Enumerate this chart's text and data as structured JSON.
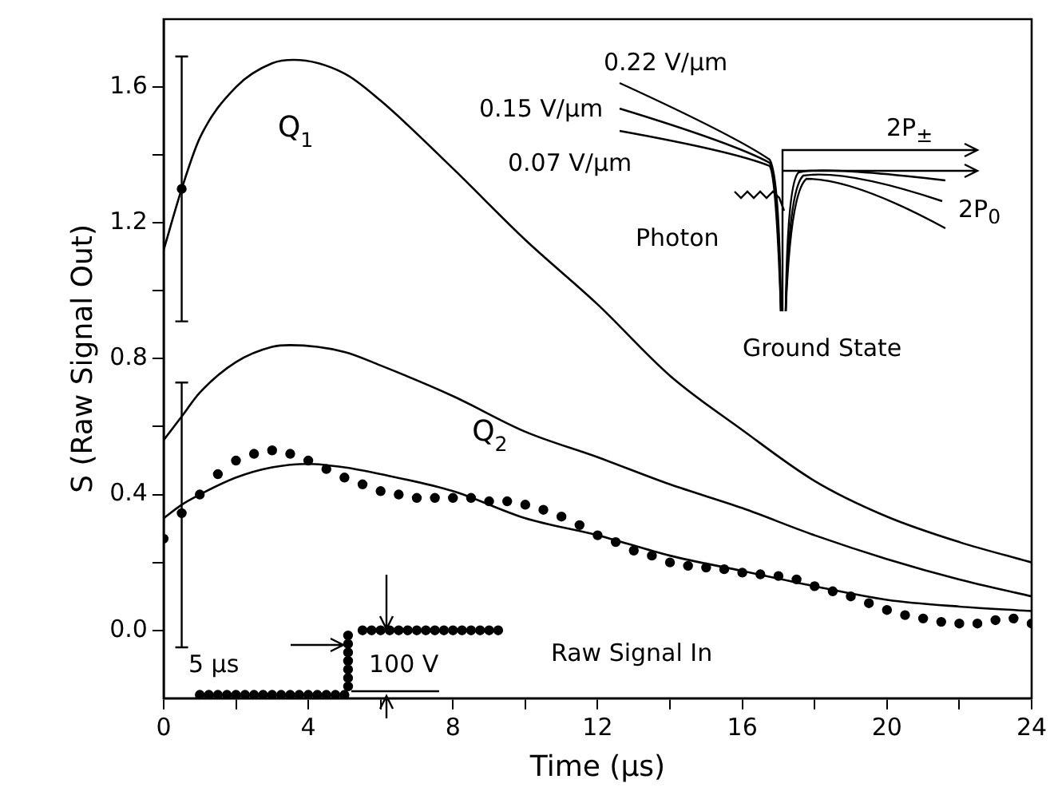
{
  "chart_data": {
    "type": "line",
    "xlabel": "Time (µs)",
    "ylabel": "S (Raw Signal Out)",
    "xlim": [
      0,
      24
    ],
    "ylim": [
      -0.2,
      1.8
    ],
    "xticks": [
      0,
      {
        "value": 2,
        "label": null
      },
      4,
      {
        "value": 6,
        "label": null
      },
      8,
      {
        "value": 10,
        "label": null
      },
      12,
      {
        "value": 14,
        "label": null
      },
      16,
      {
        "value": 18,
        "label": null
      },
      20,
      {
        "value": 22,
        "label": null
      },
      24
    ],
    "yticks": [
      {
        "value": 0,
        "label": "0.0"
      },
      {
        "value": 0.2,
        "label": null
      },
      {
        "value": 0.4,
        "label": "0.4"
      },
      {
        "value": 0.6,
        "label": null
      },
      {
        "value": 0.8,
        "label": "0.8"
      },
      {
        "value": 1.0,
        "label": null
      },
      {
        "value": 1.2,
        "label": "1.2"
      },
      {
        "value": 1.4,
        "label": null
      },
      {
        "value": 1.6,
        "label": "1.6"
      }
    ],
    "grid": false,
    "legend": false,
    "marker": "none",
    "line_style": "solid",
    "annotations": [
      "0.22 V/µm",
      "0.15 V/µm",
      "0.07 V/µm",
      "2P$_{±}$",
      "2P$_{0}$",
      "Photon",
      "Ground State",
      "5 µs",
      "100 V",
      "Raw Signal In"
    ],
    "series": [
      {
        "name": "Q$_{1}$",
        "color": "#000000",
        "x": [
          0,
          0.5,
          1,
          2,
          3,
          3.6,
          5,
          6,
          8,
          10,
          12,
          14,
          16,
          18,
          20,
          22,
          24
        ],
        "values": [
          1.12,
          1.3,
          1.45,
          1.6,
          1.67,
          1.68,
          1.64,
          1.56,
          1.36,
          1.15,
          0.96,
          0.75,
          0.59,
          0.44,
          0.335,
          0.26,
          0.2
        ]
      },
      {
        "name": "Q$_{2}$",
        "color": "#000000",
        "x": [
          0,
          0.5,
          1,
          2,
          3,
          3.5,
          5,
          6,
          8,
          10,
          12,
          14,
          16,
          18,
          20,
          22,
          24
        ],
        "values": [
          0.56,
          0.63,
          0.7,
          0.79,
          0.835,
          0.84,
          0.82,
          0.78,
          0.69,
          0.585,
          0.51,
          0.43,
          0.36,
          0.28,
          0.21,
          0.15,
          0.1
        ]
      },
      {
        "color": "#000000",
        "x": [
          0,
          0.5,
          1,
          2,
          3,
          4,
          5,
          6,
          8,
          10,
          12,
          14,
          16,
          18,
          20,
          22,
          24
        ],
        "values": [
          0.33,
          0.37,
          0.4,
          0.45,
          0.48,
          0.49,
          0.48,
          0.46,
          0.41,
          0.33,
          0.28,
          0.22,
          0.175,
          0.13,
          0.09,
          0.07,
          0.057
        ]
      },
      {
        "type": "scatter",
        "marker": "circle",
        "color": "#000000",
        "x": [
          0,
          0.5,
          1,
          1.5,
          2,
          2.5,
          3,
          3.5,
          4,
          4.5,
          5,
          5.5,
          6,
          6.5,
          7,
          7.5,
          8,
          8.5,
          9,
          9.5,
          10,
          10.5,
          11,
          11.5,
          12,
          12.5,
          13,
          13.5,
          14,
          14.5,
          15,
          15.5,
          16,
          16.5,
          17,
          17.5,
          18,
          18.5,
          19,
          19.5,
          20,
          20.5,
          21,
          21.5,
          22,
          22.5,
          23,
          23.5,
          24
        ],
        "values": [
          0.27,
          0.345,
          0.4,
          0.46,
          0.5,
          0.52,
          0.53,
          0.52,
          0.5,
          0.475,
          0.45,
          0.43,
          0.41,
          0.4,
          0.39,
          0.39,
          0.39,
          0.39,
          0.38,
          0.38,
          0.37,
          0.355,
          0.335,
          0.31,
          0.28,
          0.26,
          0.235,
          0.22,
          0.2,
          0.19,
          0.185,
          0.18,
          0.17,
          0.165,
          0.16,
          0.15,
          0.13,
          0.115,
          0.1,
          0.08,
          0.06,
          0.045,
          0.035,
          0.025,
          0.02,
          0.02,
          0.03,
          0.035,
          0.02
        ],
        "errors": [
          null,
          [
            -0.05,
            0.73
          ],
          null,
          null,
          null,
          null,
          null,
          null,
          null,
          null,
          null,
          null,
          null,
          null,
          null,
          null,
          null,
          null,
          null,
          null,
          null,
          null,
          null,
          null,
          null,
          null,
          null,
          null,
          null,
          null,
          null,
          null,
          null,
          null,
          null,
          null,
          null,
          null,
          null,
          null,
          null,
          null,
          null,
          null,
          null,
          null,
          null,
          null,
          null
        ]
      },
      {
        "type": "scatter",
        "marker": "circle",
        "color": "#000000",
        "x": [
          0.5
        ],
        "values": [
          1.3
        ],
        "errors": [
          [
            0.91,
            1.69
          ]
        ]
      },
      {
        "type": "scatter",
        "marker": "circle",
        "color": "#000000",
        "x": [
          1,
          1.25,
          1.5,
          1.75,
          2,
          2.25,
          2.5,
          2.75,
          3,
          3.25,
          3.5,
          3.75,
          4,
          4.25,
          4.5,
          4.75,
          5,
          5.1,
          5.1,
          5.1,
          5.1,
          5.1,
          5.1,
          5.1,
          5.5,
          5.75,
          6,
          6.25,
          6.5,
          6.75,
          7,
          7.25,
          7.5,
          7.75,
          8,
          8.25,
          8.5,
          8.75,
          9,
          9.25
        ],
        "values": [
          -0.19,
          -0.19,
          -0.19,
          -0.19,
          -0.19,
          -0.19,
          -0.19,
          -0.19,
          -0.19,
          -0.19,
          -0.19,
          -0.19,
          -0.19,
          -0.19,
          -0.19,
          -0.19,
          -0.19,
          -0.165,
          -0.14,
          -0.115,
          -0.09,
          -0.065,
          -0.04,
          -0.015,
          0,
          0,
          0,
          0,
          0,
          0,
          0,
          0,
          0,
          0,
          0,
          0,
          0,
          0,
          0,
          0
        ]
      }
    ]
  }
}
